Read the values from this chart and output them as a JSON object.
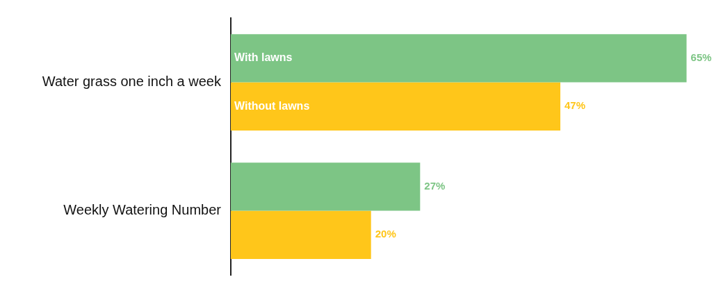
{
  "chart_data": {
    "type": "bar",
    "orientation": "horizontal",
    "categories": [
      "Water grass one inch a week",
      "Weekly Watering Number"
    ],
    "series": [
      {
        "name": "With lawns",
        "color": "#7dc585",
        "values": [
          65,
          27
        ],
        "value_labels": [
          "65%",
          "27%"
        ]
      },
      {
        "name": "Without lawns",
        "color": "#ffc61a",
        "values": [
          47,
          20
        ],
        "value_labels": [
          "47%",
          "20%"
        ]
      }
    ],
    "tick_labels": "y"
  }
}
